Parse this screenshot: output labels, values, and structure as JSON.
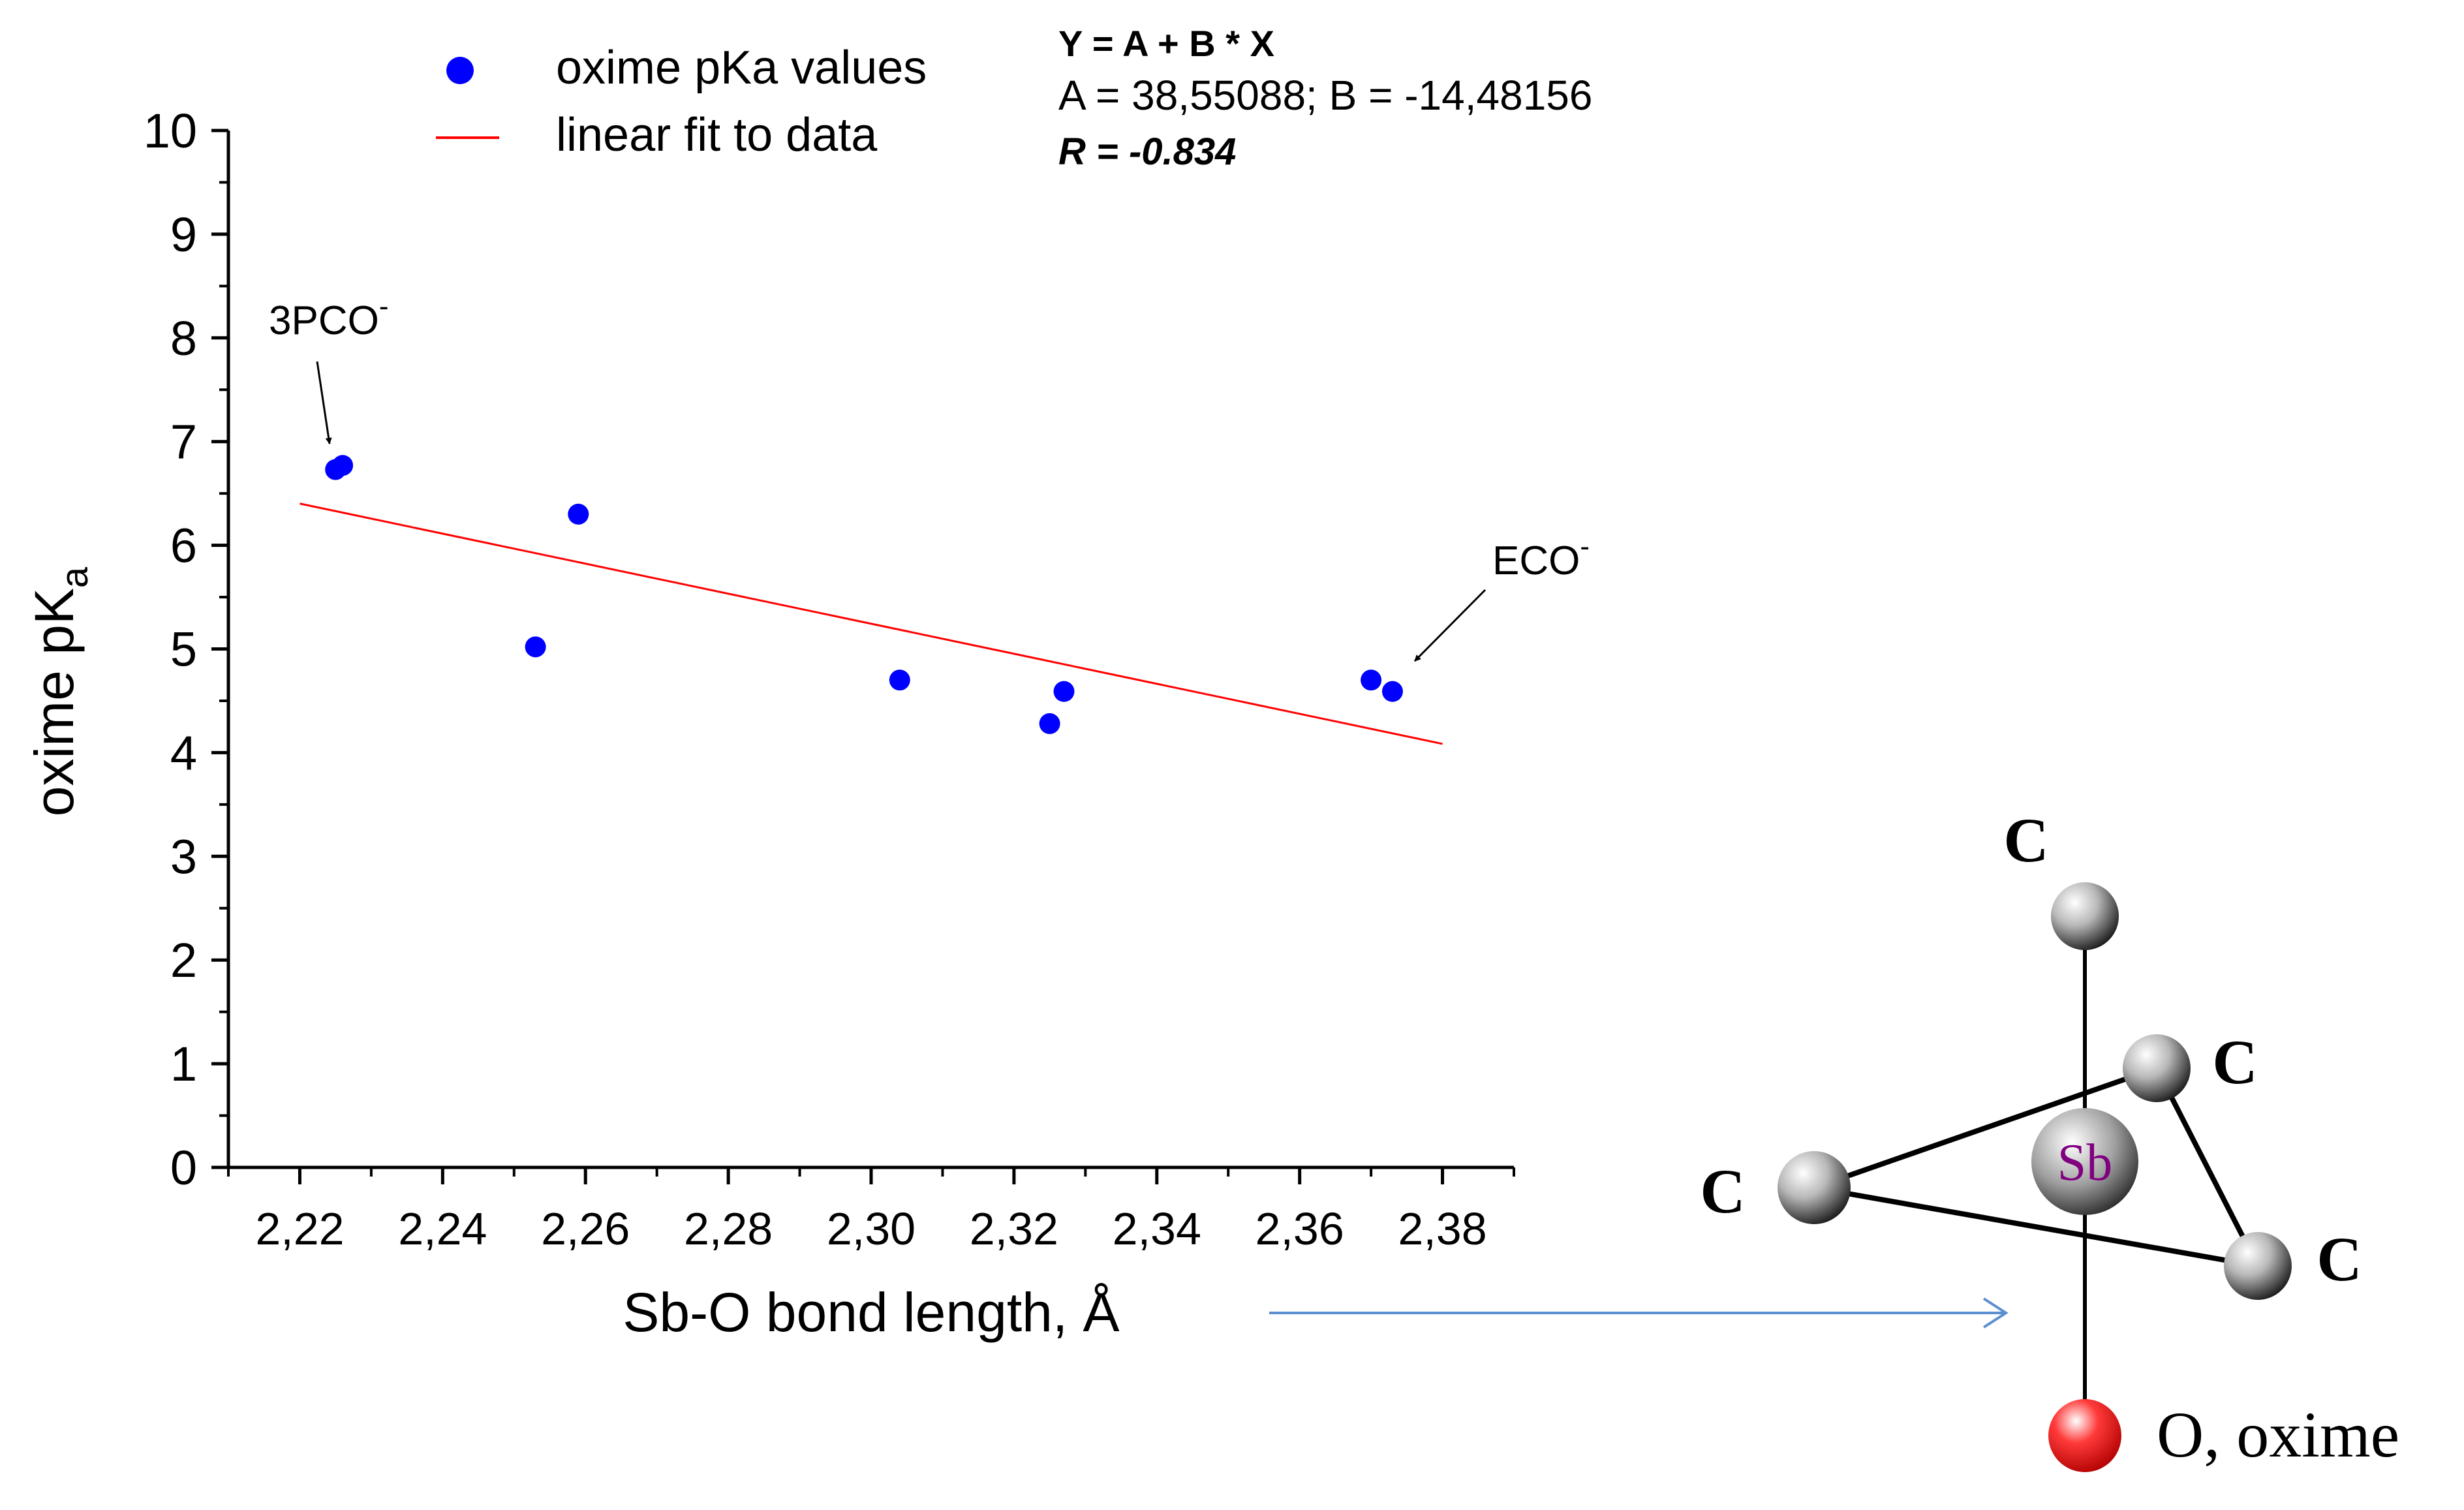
{
  "chart_data": {
    "type": "scatter",
    "xlabel": "Sb-O bond length, Å",
    "ylabel_main": "oxime pK",
    "ylabel_sub": "a",
    "xlim": [
      2.21,
      2.39
    ],
    "ylim": [
      0,
      10
    ],
    "xticks": [
      2.22,
      2.24,
      2.26,
      2.28,
      2.3,
      2.32,
      2.34,
      2.36,
      2.38
    ],
    "xtick_labels": [
      "2,22",
      "2,24",
      "2,26",
      "2,28",
      "2,30",
      "2,32",
      "2,34",
      "2,36",
      "2,38"
    ],
    "yticks": [
      0,
      1,
      2,
      3,
      4,
      5,
      6,
      7,
      8,
      9,
      10
    ],
    "ytick_labels": [
      "0",
      "1",
      "2",
      "3",
      "4",
      "5",
      "6",
      "7",
      "8",
      "9",
      "10"
    ],
    "grid": false,
    "series": [
      {
        "name": "oxime pKa values",
        "kind": "scatter",
        "color": "#0000ff",
        "points": [
          {
            "x": 2.225,
            "y": 6.73
          },
          {
            "x": 2.226,
            "y": 6.77
          },
          {
            "x": 2.253,
            "y": 5.02
          },
          {
            "x": 2.259,
            "y": 6.3
          },
          {
            "x": 2.304,
            "y": 4.7
          },
          {
            "x": 2.325,
            "y": 4.28
          },
          {
            "x": 2.327,
            "y": 4.59
          },
          {
            "x": 2.37,
            "y": 4.7
          },
          {
            "x": 2.373,
            "y": 4.59
          }
        ]
      },
      {
        "name": "linear fit to data",
        "kind": "line",
        "color": "#ff0000",
        "x_range": [
          2.22,
          2.38
        ],
        "intercept": 38.55088,
        "slope": -14.48156
      }
    ],
    "fit_annotation": {
      "equation": "Y = A + B * X",
      "params": "A = 38,55088; B = -14,48156",
      "r_value": "R = -0.834"
    },
    "point_annotations": [
      {
        "label": "3PCO",
        "superscript": "-",
        "x": 2.225,
        "y": 6.73
      },
      {
        "label": "ECO",
        "superscript": "-",
        "x": 2.373,
        "y": 4.59
      }
    ],
    "legend_position": "top"
  },
  "molecule": {
    "center_atom": "Sb",
    "carbon_label": "C",
    "oxygen_label": "O, oxime"
  },
  "colors": {
    "axis": "#000000",
    "points": "#0000ff",
    "fit_line": "#ff0000",
    "pointer_arrow": "#5b8fd0",
    "sb_text": "#800080",
    "oxygen_atom": "#ff2020"
  }
}
